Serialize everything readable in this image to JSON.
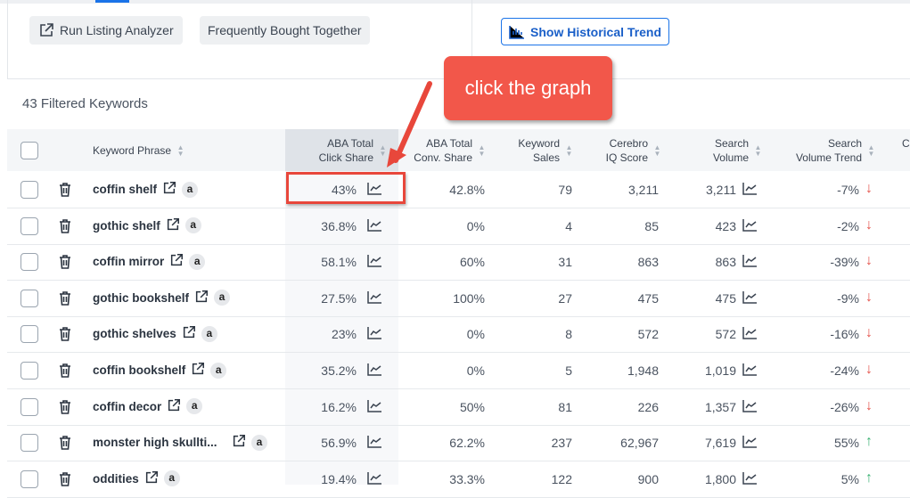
{
  "toolbar": {
    "run_listing_analyzer": "Run Listing Analyzer",
    "frequently_bought_together": "Frequently Bought Together",
    "show_historical_trend": "Show Historical Trend"
  },
  "filtered_count": "43 Filtered Keywords",
  "annotation": {
    "text": "click the graph",
    "color": "#f2574a"
  },
  "columns": {
    "keyword_phrase": "Keyword Phrase",
    "aba_click_1": "ABA Total",
    "aba_click_2": "Click Share",
    "aba_conv_1": "ABA Total",
    "aba_conv_2": "Conv. Share",
    "kw_sales_1": "Keyword",
    "kw_sales_2": "Sales",
    "cerebro_1": "Cerebro",
    "cerebro_2": "IQ Score",
    "sv_1": "Search",
    "sv_2": "Volume",
    "svt_1": "Search",
    "svt_2": "Volume Trend",
    "next": "C"
  },
  "rows": [
    {
      "keyword": "coffin shelf",
      "click_share": "43%",
      "conv_share": "42.8%",
      "sales": "79",
      "iq": "3,211",
      "volume": "3,211",
      "trend": "-7%",
      "dir": "down"
    },
    {
      "keyword": "gothic shelf",
      "click_share": "36.8%",
      "conv_share": "0%",
      "sales": "4",
      "iq": "85",
      "volume": "423",
      "trend": "-2%",
      "dir": "down"
    },
    {
      "keyword": "coffin mirror",
      "click_share": "58.1%",
      "conv_share": "60%",
      "sales": "31",
      "iq": "863",
      "volume": "863",
      "trend": "-39%",
      "dir": "down"
    },
    {
      "keyword": "gothic bookshelf",
      "click_share": "27.5%",
      "conv_share": "100%",
      "sales": "27",
      "iq": "475",
      "volume": "475",
      "trend": "-9%",
      "dir": "down"
    },
    {
      "keyword": "gothic shelves",
      "click_share": "23%",
      "conv_share": "0%",
      "sales": "8",
      "iq": "572",
      "volume": "572",
      "trend": "-16%",
      "dir": "down"
    },
    {
      "keyword": "coffin bookshelf",
      "click_share": "35.2%",
      "conv_share": "0%",
      "sales": "5",
      "iq": "1,948",
      "volume": "1,019",
      "trend": "-24%",
      "dir": "down"
    },
    {
      "keyword": "coffin decor",
      "click_share": "16.2%",
      "conv_share": "50%",
      "sales": "81",
      "iq": "226",
      "volume": "1,357",
      "trend": "-26%",
      "dir": "down"
    },
    {
      "keyword": "monster high skullti...",
      "click_share": "56.9%",
      "conv_share": "62.2%",
      "sales": "237",
      "iq": "62,967",
      "volume": "7,619",
      "trend": "55%",
      "dir": "up"
    },
    {
      "keyword": "oddities",
      "click_share": "19.4%",
      "conv_share": "33.3%",
      "sales": "122",
      "iq": "900",
      "volume": "1,800",
      "trend": "5%",
      "dir": "up"
    }
  ],
  "arrow_glyphs": {
    "up": "↑",
    "down": "↓"
  },
  "amazon_glyph": "a"
}
